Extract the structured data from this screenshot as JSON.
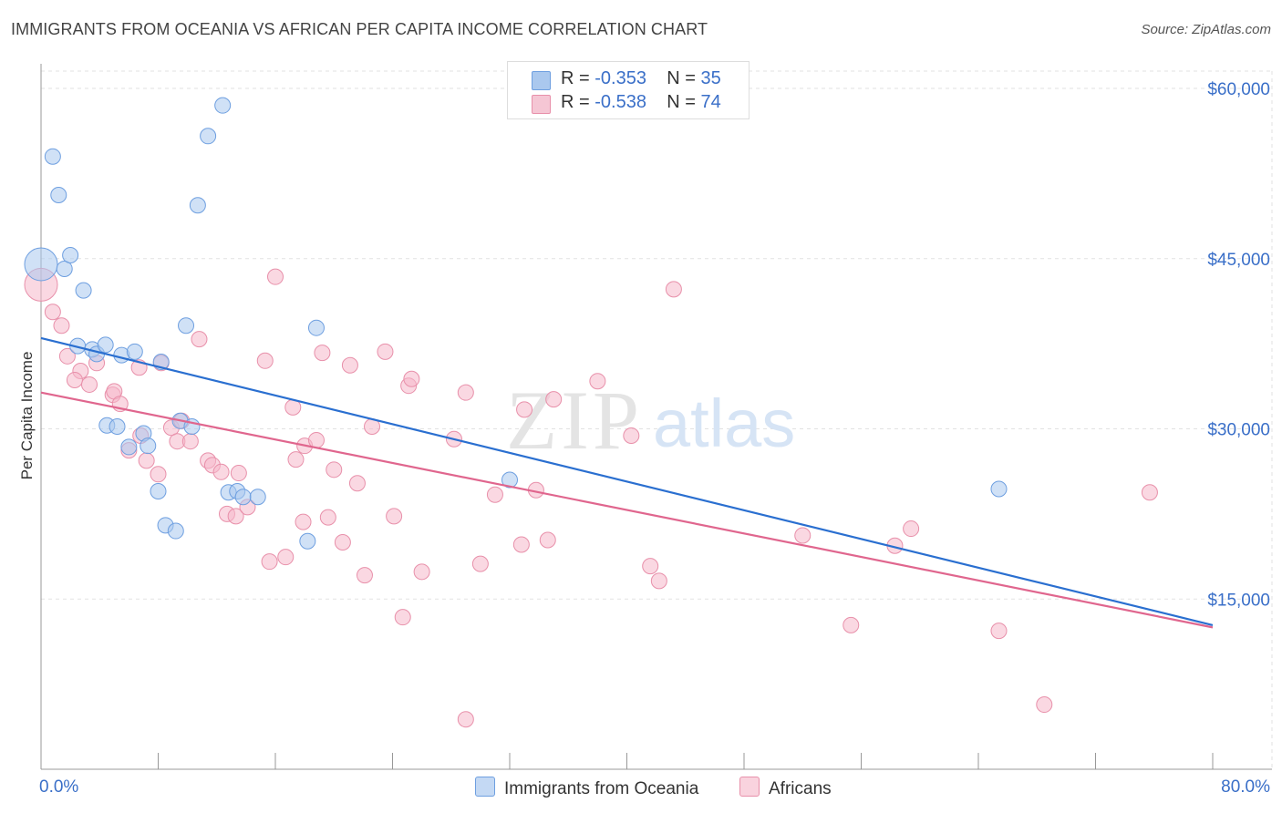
{
  "title": "IMMIGRANTS FROM OCEANIA VS AFRICAN PER CAPITA INCOME CORRELATION CHART",
  "source": "Source: ZipAtlas.com",
  "watermark": {
    "zip": "ZIP",
    "atlas": "atlas"
  },
  "legend": {
    "rows": [
      {
        "r_label": "R = ",
        "r_value": "-0.353",
        "n_label": "N = ",
        "n_value": "35"
      },
      {
        "r_label": "R = ",
        "r_value": "-0.538",
        "n_label": "N = ",
        "n_value": "74"
      }
    ]
  },
  "colors": {
    "blue_fill": "#aac8ee",
    "blue_stroke": "#6e9fe0",
    "blue_line": "#2a6fd0",
    "pink_fill": "#f5b8ca",
    "pink_stroke": "#e890aa",
    "pink_line": "#e0668e",
    "axis_label": "#3a6fc8",
    "grid": "#e2e2e2"
  },
  "chart_data": {
    "type": "scatter",
    "title": "IMMIGRANTS FROM OCEANIA VS AFRICAN PER CAPITA INCOME CORRELATION CHART",
    "xlabel": "",
    "ylabel": "Per Capita Income",
    "xlim": [
      0,
      80
    ],
    "ylim": [
      0,
      63000
    ],
    "x_tick_labels": {
      "left": "0.0%",
      "right": "80.0%"
    },
    "y_ticks": [
      15000,
      30000,
      45000,
      60000
    ],
    "y_tick_labels": [
      "$15,000",
      "$30,000",
      "$45,000",
      "$60,000"
    ],
    "grid": true,
    "legend_position": "top-center",
    "series": [
      {
        "name": "Immigrants from Oceania",
        "color": "#aac8ee",
        "trend": {
          "x": [
            0,
            80
          ],
          "y": [
            38000,
            12700
          ]
        },
        "points": [
          {
            "x": 0.0,
            "y": 44500,
            "big": true
          },
          {
            "x": 0.8,
            "y": 54000
          },
          {
            "x": 1.2,
            "y": 50600
          },
          {
            "x": 1.6,
            "y": 44100
          },
          {
            "x": 2.0,
            "y": 45300
          },
          {
            "x": 2.9,
            "y": 42200
          },
          {
            "x": 2.5,
            "y": 37300
          },
          {
            "x": 3.5,
            "y": 37000
          },
          {
            "x": 3.8,
            "y": 36600
          },
          {
            "x": 4.4,
            "y": 37400
          },
          {
            "x": 5.5,
            "y": 36500
          },
          {
            "x": 6.4,
            "y": 36800
          },
          {
            "x": 8.2,
            "y": 35900
          },
          {
            "x": 9.9,
            "y": 39100
          },
          {
            "x": 11.4,
            "y": 55800
          },
          {
            "x": 12.4,
            "y": 58500
          },
          {
            "x": 10.7,
            "y": 49700
          },
          {
            "x": 18.8,
            "y": 38900
          },
          {
            "x": 4.5,
            "y": 30300
          },
          {
            "x": 5.2,
            "y": 30200
          },
          {
            "x": 6.0,
            "y": 28400
          },
          {
            "x": 7.0,
            "y": 29600
          },
          {
            "x": 7.3,
            "y": 28500
          },
          {
            "x": 9.5,
            "y": 30700
          },
          {
            "x": 10.3,
            "y": 30200
          },
          {
            "x": 8.0,
            "y": 24500
          },
          {
            "x": 12.8,
            "y": 24400
          },
          {
            "x": 13.4,
            "y": 24500
          },
          {
            "x": 13.8,
            "y": 24000
          },
          {
            "x": 14.8,
            "y": 24000
          },
          {
            "x": 8.5,
            "y": 21500
          },
          {
            "x": 9.2,
            "y": 21000
          },
          {
            "x": 18.2,
            "y": 20100
          },
          {
            "x": 32.0,
            "y": 25500
          },
          {
            "x": 65.4,
            "y": 24700
          }
        ]
      },
      {
        "name": "Africans",
        "color": "#f5b8ca",
        "trend": {
          "x": [
            0,
            80
          ],
          "y": [
            33200,
            12500
          ]
        },
        "points": [
          {
            "x": 0.0,
            "y": 42700,
            "big": true
          },
          {
            "x": 0.8,
            "y": 40300
          },
          {
            "x": 1.4,
            "y": 39100
          },
          {
            "x": 1.8,
            "y": 36400
          },
          {
            "x": 2.7,
            "y": 35100
          },
          {
            "x": 2.3,
            "y": 34300
          },
          {
            "x": 3.3,
            "y": 33900
          },
          {
            "x": 3.8,
            "y": 35800
          },
          {
            "x": 4.9,
            "y": 33000
          },
          {
            "x": 5.0,
            "y": 33300
          },
          {
            "x": 5.4,
            "y": 32200
          },
          {
            "x": 6.7,
            "y": 35400
          },
          {
            "x": 8.2,
            "y": 35800
          },
          {
            "x": 10.8,
            "y": 37900
          },
          {
            "x": 7.2,
            "y": 27200
          },
          {
            "x": 6.0,
            "y": 28100
          },
          {
            "x": 6.8,
            "y": 29400
          },
          {
            "x": 8.0,
            "y": 26000
          },
          {
            "x": 8.9,
            "y": 30100
          },
          {
            "x": 9.6,
            "y": 30700
          },
          {
            "x": 9.3,
            "y": 28900
          },
          {
            "x": 10.2,
            "y": 28900
          },
          {
            "x": 11.4,
            "y": 27200
          },
          {
            "x": 11.7,
            "y": 26800
          },
          {
            "x": 12.3,
            "y": 26200
          },
          {
            "x": 13.5,
            "y": 26100
          },
          {
            "x": 12.7,
            "y": 22500
          },
          {
            "x": 13.3,
            "y": 22300
          },
          {
            "x": 14.1,
            "y": 23100
          },
          {
            "x": 15.3,
            "y": 36000
          },
          {
            "x": 15.6,
            "y": 18300
          },
          {
            "x": 16.0,
            "y": 43400
          },
          {
            "x": 16.7,
            "y": 18700
          },
          {
            "x": 17.2,
            "y": 31900
          },
          {
            "x": 17.4,
            "y": 27300
          },
          {
            "x": 17.9,
            "y": 21800
          },
          {
            "x": 18.0,
            "y": 28500
          },
          {
            "x": 18.8,
            "y": 29000
          },
          {
            "x": 19.2,
            "y": 36700
          },
          {
            "x": 19.6,
            "y": 22200
          },
          {
            "x": 20.0,
            "y": 26400
          },
          {
            "x": 20.6,
            "y": 20000
          },
          {
            "x": 21.1,
            "y": 35600
          },
          {
            "x": 21.6,
            "y": 25200
          },
          {
            "x": 22.1,
            "y": 17100
          },
          {
            "x": 22.6,
            "y": 30200
          },
          {
            "x": 23.5,
            "y": 36800
          },
          {
            "x": 24.1,
            "y": 22300
          },
          {
            "x": 24.7,
            "y": 13400
          },
          {
            "x": 25.1,
            "y": 33800
          },
          {
            "x": 25.3,
            "y": 34400
          },
          {
            "x": 26.0,
            "y": 17400
          },
          {
            "x": 28.2,
            "y": 29100
          },
          {
            "x": 29.0,
            "y": 33200
          },
          {
            "x": 29.0,
            "y": 4400
          },
          {
            "x": 30.0,
            "y": 18100
          },
          {
            "x": 31.0,
            "y": 24200
          },
          {
            "x": 32.8,
            "y": 19800
          },
          {
            "x": 33.0,
            "y": 31700
          },
          {
            "x": 33.8,
            "y": 24600
          },
          {
            "x": 34.6,
            "y": 20200
          },
          {
            "x": 35.0,
            "y": 32600
          },
          {
            "x": 38.0,
            "y": 34200
          },
          {
            "x": 40.3,
            "y": 29400
          },
          {
            "x": 41.6,
            "y": 17900
          },
          {
            "x": 42.2,
            "y": 16600
          },
          {
            "x": 43.2,
            "y": 42300
          },
          {
            "x": 52.0,
            "y": 20600
          },
          {
            "x": 55.3,
            "y": 12700
          },
          {
            "x": 58.3,
            "y": 19700
          },
          {
            "x": 59.4,
            "y": 21200
          },
          {
            "x": 65.4,
            "y": 12200
          },
          {
            "x": 68.5,
            "y": 5700
          },
          {
            "x": 75.7,
            "y": 24400
          }
        ]
      }
    ]
  }
}
